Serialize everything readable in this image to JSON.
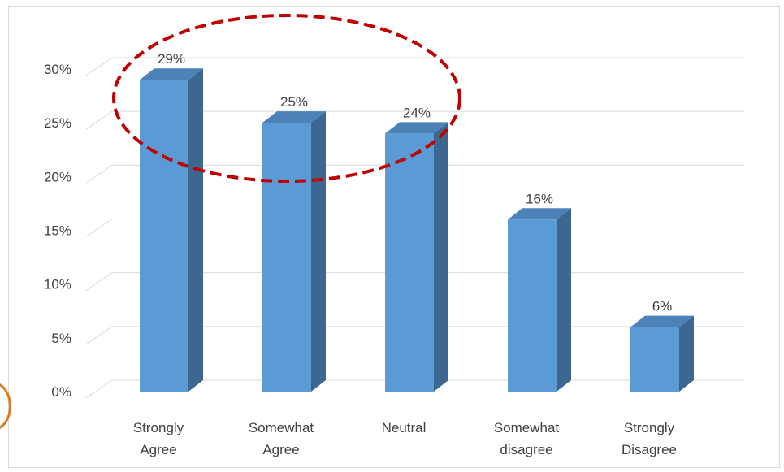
{
  "chart_data": {
    "type": "bar",
    "style": "3d-column",
    "categories": [
      [
        "Strongly",
        "Agree"
      ],
      [
        "Somewhat",
        "Agree"
      ],
      [
        "Neutral"
      ],
      [
        "Somewhat",
        "disagree"
      ],
      [
        "Strongly",
        "Disagree"
      ]
    ],
    "values": [
      0.29,
      0.25,
      0.24,
      0.16,
      0.06
    ],
    "data_labels": [
      "29%",
      "25%",
      "24%",
      "16%",
      "6%"
    ],
    "ylim": [
      0,
      0.3
    ],
    "yticks": [
      0,
      0.05,
      0.1,
      0.15,
      0.2,
      0.25,
      0.3
    ],
    "ytick_labels": [
      "0%",
      "5%",
      "10%",
      "15%",
      "20%",
      "25%",
      "30%"
    ],
    "grid": true,
    "legend": "none",
    "annotation": {
      "shape": "dashed-ellipse",
      "encloses": [
        "Strongly Agree",
        "Somewhat Agree",
        "Neutral"
      ],
      "color": "#c00000"
    },
    "colors": {
      "bar_front": "#5b9bd5",
      "bar_side": "#3b6790",
      "bar_top": "#4c82b8",
      "grid": "#d9d9d9",
      "accent_arc": "#e07b24"
    }
  }
}
